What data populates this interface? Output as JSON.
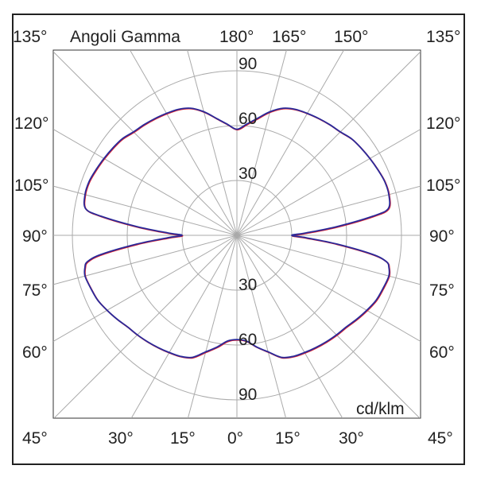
{
  "chart_data": {
    "type": "polar-line",
    "title": "Angoli Gamma",
    "unit_label": "cd/klm",
    "radial_ticks": [
      30,
      60,
      90
    ],
    "rlim": [
      0,
      90
    ],
    "angular_step_deg": 15,
    "grid": true,
    "top_labels": [
      "135°",
      "180°",
      "165°",
      "150°",
      "135°"
    ],
    "left_labels": [
      "120°",
      "105°",
      "90°",
      "75°",
      "60°"
    ],
    "right_labels": [
      "120°",
      "105°",
      "90°",
      "75°",
      "60°"
    ],
    "bottom_labels": [
      "45°",
      "30°",
      "15°",
      "0°",
      "15°",
      "30°",
      "45°"
    ],
    "radial_labels_top": [
      "90",
      "60",
      "30"
    ],
    "radial_labels_bottom": [
      "30",
      "60",
      "90"
    ],
    "gamma_deg": [
      0,
      5,
      10,
      15,
      20,
      25,
      30,
      35,
      40,
      45,
      50,
      55,
      60,
      65,
      70,
      75,
      78,
      80,
      82,
      85,
      88,
      90,
      92,
      95,
      98,
      100,
      105,
      110,
      115,
      120,
      125,
      130,
      135,
      140,
      145,
      150,
      155,
      160,
      165,
      170,
      175,
      180
    ],
    "series": [
      {
        "color": "#e0202a",
        "values": [
          57,
          58,
          62,
          66,
          71,
          73,
          74,
          75,
          76,
          77,
          78,
          80,
          82,
          84,
          85,
          86,
          85,
          83,
          75,
          55,
          38,
          30,
          38,
          55,
          75,
          84,
          86,
          86,
          85,
          84,
          83,
          82,
          80,
          79,
          78,
          77,
          76,
          74,
          70,
          65,
          61,
          58
        ]
      },
      {
        "color": "#2a2a9a",
        "values": [
          57,
          58,
          62,
          66,
          71,
          73,
          74,
          75,
          76,
          77,
          78,
          80,
          82,
          84,
          85,
          86,
          85,
          83,
          75,
          55,
          38,
          30,
          38,
          55,
          75,
          84,
          86,
          86,
          85,
          84,
          83,
          82,
          80,
          79,
          78,
          77,
          76,
          74,
          70,
          65,
          61,
          58
        ]
      }
    ]
  }
}
